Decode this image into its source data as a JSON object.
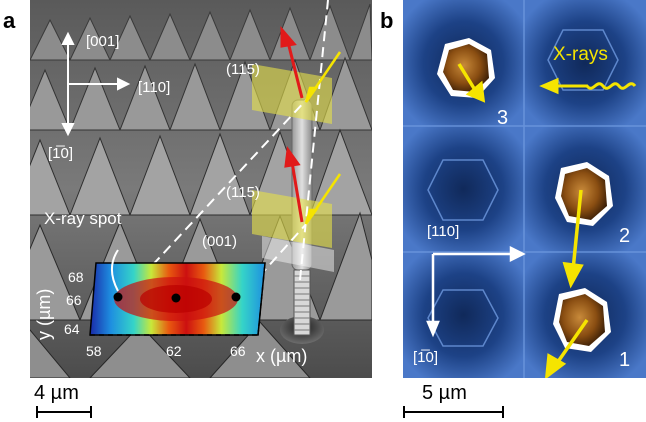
{
  "panel_a": {
    "label": "a",
    "axes": {
      "up": "[001]",
      "right": "[110]",
      "down": "[1̅0]"
    },
    "planes": {
      "upper": "(115)",
      "lower": "(115)",
      "base": "(001)"
    },
    "spot_label": "X-ray spot",
    "map": {
      "ylabel": "y (µm)",
      "xlabel": "x (µm)",
      "yticks": [
        "68",
        "66",
        "64"
      ],
      "xticks": [
        "58",
        "62",
        "66"
      ]
    },
    "scale": "4 µm"
  },
  "panel_b": {
    "label": "b",
    "xrays_label": "X-rays",
    "pillar_numbers": [
      "3",
      "2",
      "1"
    ],
    "axes": {
      "right": "[110]",
      "down": "[1̅0]"
    },
    "scale": "5 µm"
  },
  "colors": {
    "xray_yellow": "#f5e400",
    "red_arrow": "#e11a1a",
    "blue_bg": "#1f3f7e",
    "plane_yellow": "#e6e14a"
  }
}
